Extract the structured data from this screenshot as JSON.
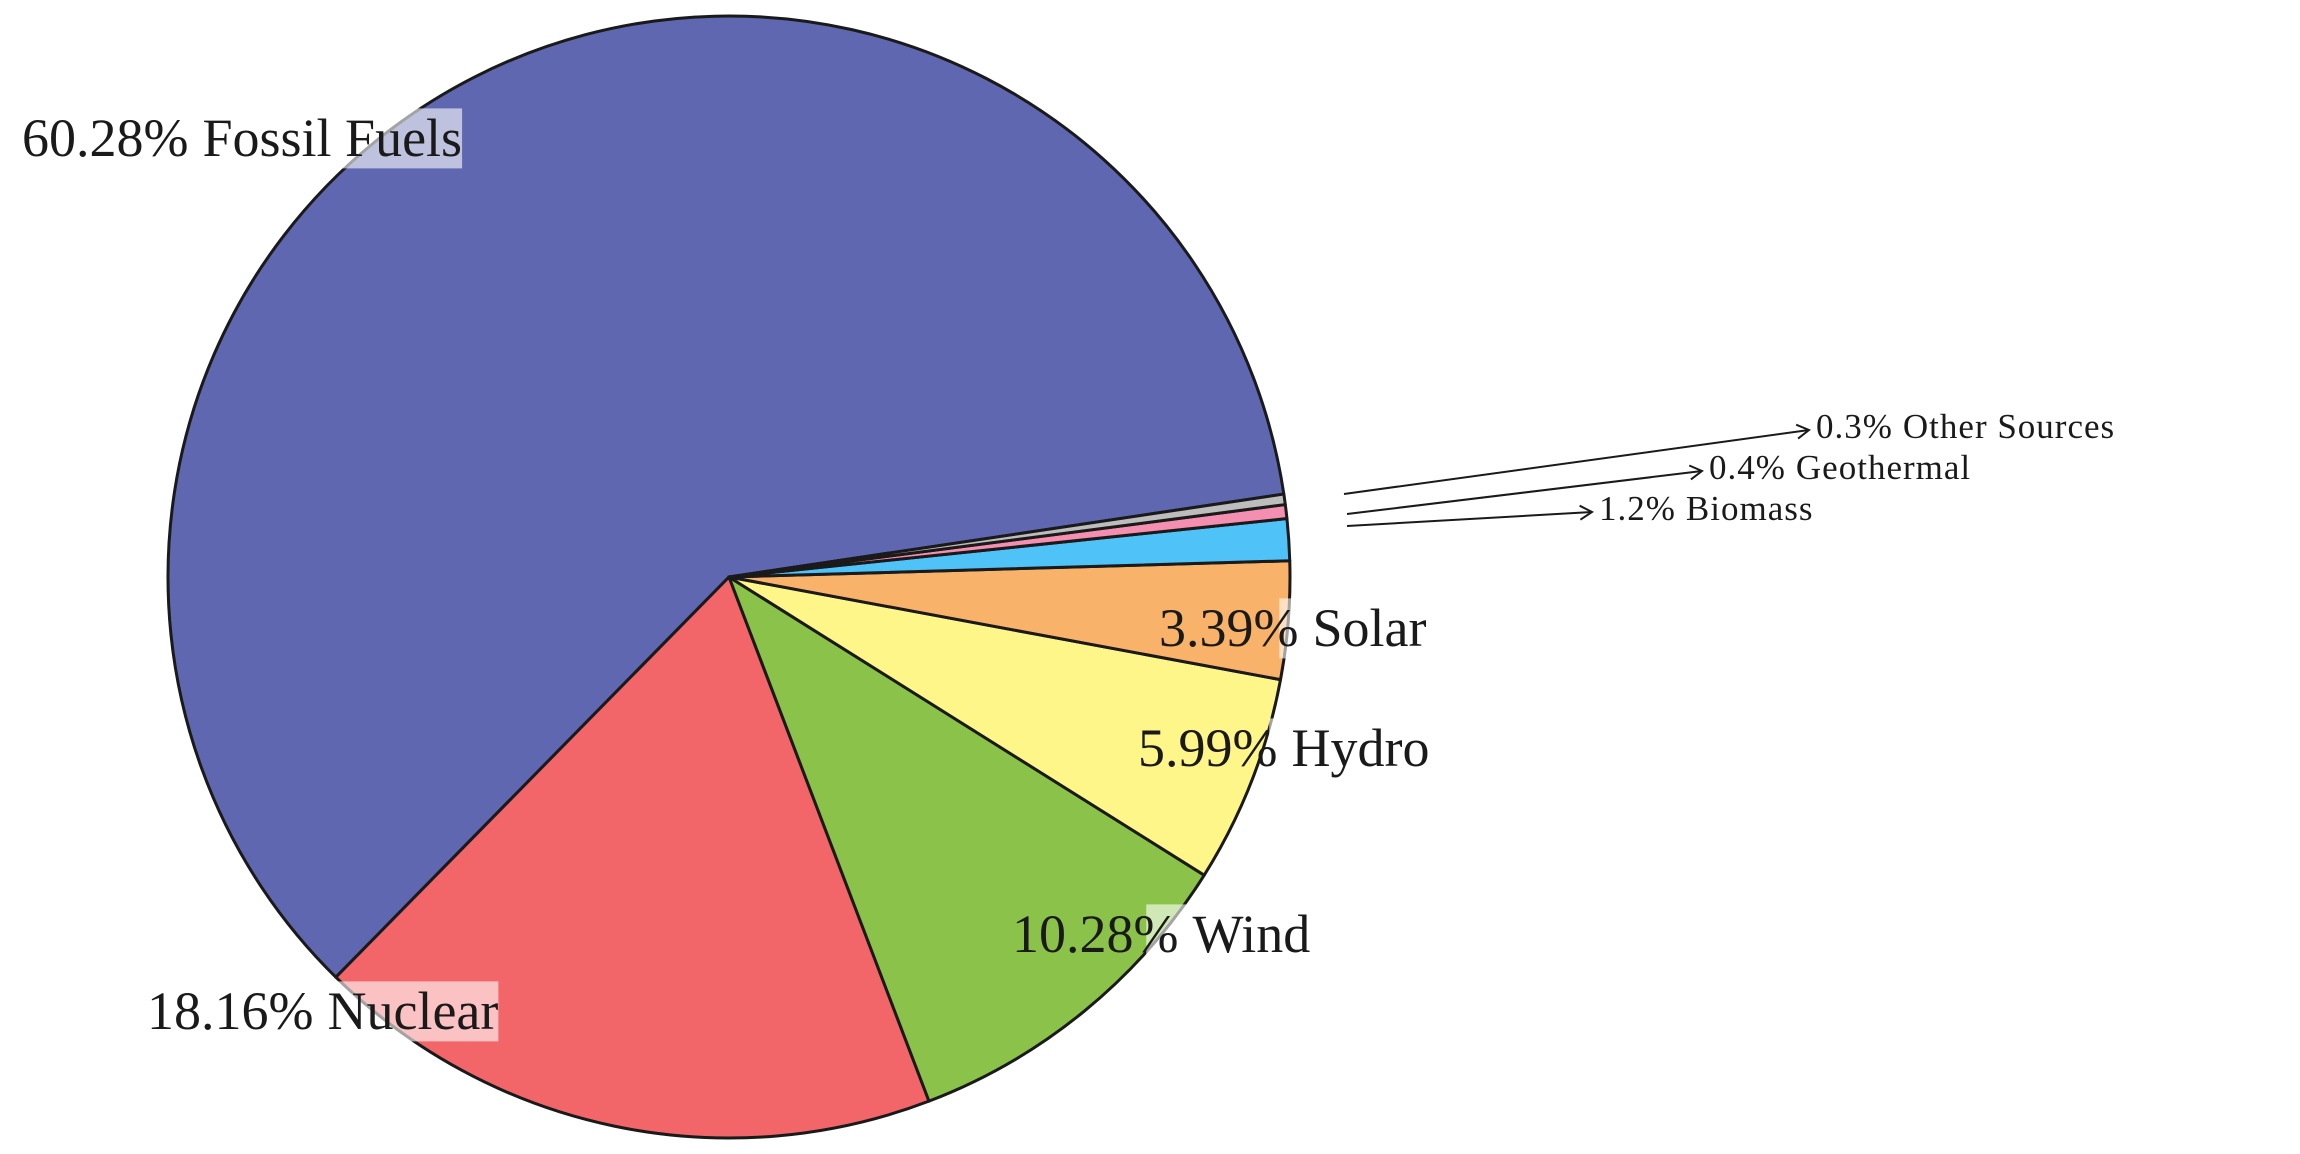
{
  "chart_data": {
    "type": "pie",
    "categories": [
      "Fossil Fuels",
      "Nuclear",
      "Wind",
      "Hydro",
      "Solar",
      "Biomass",
      "Geothermal",
      "Other Sources"
    ],
    "values": [
      60.28,
      18.16,
      10.28,
      5.99,
      3.39,
      1.2,
      0.4,
      0.3
    ],
    "value_labels": [
      "60.28%",
      "18.16%",
      "10.28%",
      "5.99%",
      "3.39%",
      "1.2%",
      "0.4%",
      "0.3%"
    ],
    "colors": [
      "#5e67b0",
      "#f2666a",
      "#8bc34a",
      "#fff68a",
      "#f9b26a",
      "#4fc3f7",
      "#f48fb1",
      "#bdbdbd"
    ]
  }
}
